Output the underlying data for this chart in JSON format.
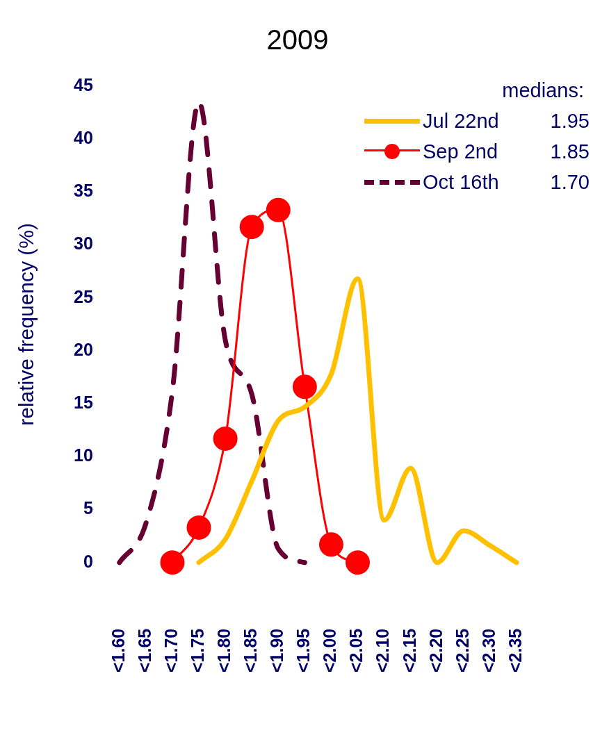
{
  "chart_data": {
    "type": "line",
    "title": "2009",
    "ylabel": "relative frequency (%)",
    "legend_title": "medians:",
    "legend": "top right",
    "grid": false,
    "categories": [
      "<1.60",
      "<1.65",
      "<1.70",
      "<1.75",
      "<1.80",
      "<1.85",
      "<1.90",
      "<1.95",
      "<2.00",
      "<2.05",
      "<2.10",
      "<2.15",
      "<2.20",
      "<2.25",
      "<2.30",
      "<2.35"
    ],
    "ylim": [
      0,
      45
    ],
    "yticks": [
      0,
      5,
      10,
      15,
      20,
      25,
      30,
      35,
      40,
      45
    ],
    "annotations": [
      "1.95",
      "1.85",
      "1.70"
    ],
    "series": [
      {
        "name": "Jul 22nd",
        "color": "#ffc000",
        "marker": "none",
        "line_style": "solid",
        "values": [
          null,
          null,
          null,
          0,
          2.2,
          7.7,
          13.4,
          14.7,
          17.8,
          26.8,
          4.0,
          8.9,
          0,
          3.0,
          1.6,
          0
        ]
      },
      {
        "name": "Sep 2nd",
        "color": "#ff0000",
        "marker": "circle",
        "line_style": "solid",
        "values": [
          null,
          null,
          0,
          3.3,
          11.7,
          31.7,
          33.3,
          16.6,
          1.7,
          0,
          null,
          null,
          null,
          null,
          null,
          null
        ]
      },
      {
        "name": "Oct 16th",
        "color": "#660033",
        "marker": "none",
        "line_style": "dashed",
        "values": [
          0,
          3.7,
          16.2,
          43.5,
          21,
          15.9,
          1.3,
          0,
          null,
          null,
          null,
          null,
          null,
          null,
          null,
          null
        ]
      }
    ]
  }
}
